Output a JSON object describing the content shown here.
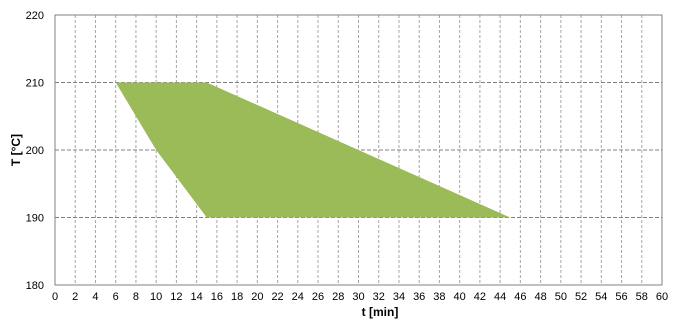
{
  "chart_data": {
    "type": "area",
    "title": "",
    "xlabel": "t [min]",
    "ylabel": "T  [°C]",
    "xlim": [
      0,
      60
    ],
    "ylim": [
      180,
      220
    ],
    "x_ticks": [
      0,
      2,
      4,
      6,
      8,
      10,
      12,
      14,
      16,
      18,
      20,
      22,
      24,
      26,
      28,
      30,
      32,
      34,
      36,
      38,
      40,
      42,
      44,
      46,
      48,
      50,
      52,
      54,
      56,
      58,
      60
    ],
    "y_ticks": [
      180,
      190,
      200,
      210,
      220
    ],
    "x_tick_labels": [
      "0",
      "2",
      "4",
      "6",
      "8",
      "10",
      "12",
      "14",
      "16",
      "18",
      "20",
      "22",
      "24",
      "26",
      "28",
      "30",
      "32",
      "34",
      "36",
      "38",
      "40",
      "42",
      "44",
      "46",
      "48",
      "50",
      "52",
      "54",
      "56",
      "58",
      "60"
    ],
    "y_tick_labels": [
      "180",
      "190",
      "200",
      "210",
      "220"
    ],
    "grid": true,
    "legend": "none",
    "fill_color": "#9bbb59",
    "series": [
      {
        "polygon": [
          {
            "x": 6,
            "y": 210
          },
          {
            "x": 15,
            "y": 210
          },
          {
            "x": 45,
            "y": 190
          },
          {
            "x": 15,
            "y": 190
          },
          {
            "x": 10,
            "y": 200
          }
        ]
      }
    ]
  }
}
